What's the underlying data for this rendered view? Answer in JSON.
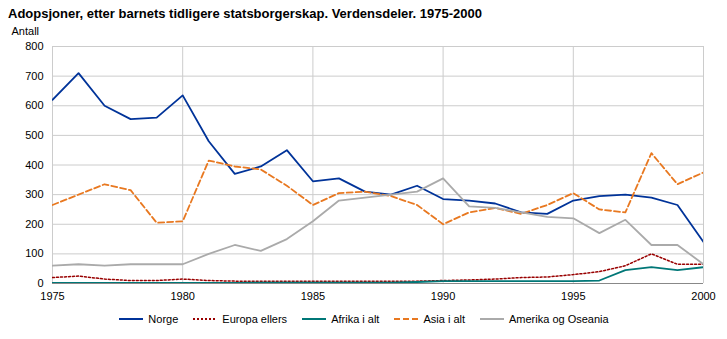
{
  "chart_data": {
    "type": "line",
    "title": "Adopsjoner, etter barnets tidligere statsborgerskap. Verdensdeler. 1975-2000",
    "ylabel": "Antall",
    "x": [
      1975,
      1976,
      1977,
      1978,
      1979,
      1980,
      1981,
      1982,
      1983,
      1984,
      1985,
      1986,
      1987,
      1988,
      1989,
      1990,
      1991,
      1992,
      1993,
      1994,
      1995,
      1996,
      1997,
      1998,
      1999,
      2000
    ],
    "xlim": [
      1975,
      2000
    ],
    "xticks": [
      1975,
      1980,
      1985,
      1990,
      1995,
      2000
    ],
    "ylim": [
      0,
      800
    ],
    "yticks": [
      0,
      100,
      200,
      300,
      400,
      500,
      600,
      700,
      800
    ],
    "grid": true,
    "legend": "bottom",
    "series": [
      {
        "name": "Norge",
        "color": "#003399",
        "line_style": "solid",
        "values": [
          620,
          710,
          600,
          555,
          560,
          635,
          480,
          370,
          395,
          450,
          345,
          355,
          310,
          300,
          330,
          285,
          280,
          270,
          240,
          235,
          280,
          295,
          300,
          290,
          265,
          140
        ]
      },
      {
        "name": "Europa ellers",
        "color": "#990000",
        "line_style": "dotted",
        "values": [
          20,
          25,
          15,
          10,
          10,
          15,
          10,
          8,
          8,
          8,
          8,
          8,
          8,
          8,
          8,
          10,
          12,
          15,
          20,
          22,
          30,
          40,
          60,
          100,
          65,
          65
        ]
      },
      {
        "name": "Afrika i alt",
        "color": "#007777",
        "line_style": "solid",
        "values": [
          2,
          2,
          2,
          2,
          2,
          2,
          2,
          2,
          3,
          3,
          3,
          3,
          3,
          3,
          5,
          8,
          8,
          8,
          8,
          8,
          8,
          10,
          45,
          55,
          45,
          55
        ]
      },
      {
        "name": "Asia i alt",
        "color": "#e87820",
        "line_style": "dashed",
        "values": [
          265,
          300,
          335,
          315,
          205,
          210,
          415,
          395,
          385,
          330,
          265,
          305,
          310,
          295,
          265,
          200,
          240,
          255,
          235,
          265,
          305,
          250,
          240,
          440,
          335,
          375
        ]
      },
      {
        "name": "Amerika og Oseania",
        "color": "#aaaaaa",
        "line_style": "solid",
        "values": [
          60,
          65,
          60,
          65,
          65,
          65,
          100,
          130,
          110,
          150,
          210,
          280,
          290,
          300,
          310,
          355,
          260,
          255,
          240,
          225,
          220,
          170,
          215,
          130,
          130,
          65
        ]
      }
    ]
  }
}
